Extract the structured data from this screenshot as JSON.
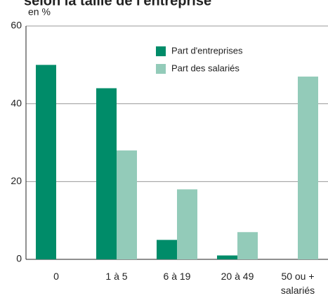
{
  "chart_data": {
    "type": "bar",
    "title": "selon la taille de l'entreprise",
    "y_label": "en %",
    "categories": [
      "0",
      "1 à 5",
      "6 à 19",
      "20 à 49",
      "50 ou + salariés"
    ],
    "series": [
      {
        "name": "Part d'entreprises",
        "color": "#008c69",
        "values": [
          50,
          44,
          5,
          1,
          0
        ]
      },
      {
        "name": "Part des salariés",
        "color": "#93cbb9",
        "values": [
          0,
          28,
          18,
          7,
          47
        ]
      }
    ],
    "ylim": [
      0,
      60
    ],
    "yticks": [
      0,
      20,
      40,
      60
    ],
    "grid": true
  }
}
